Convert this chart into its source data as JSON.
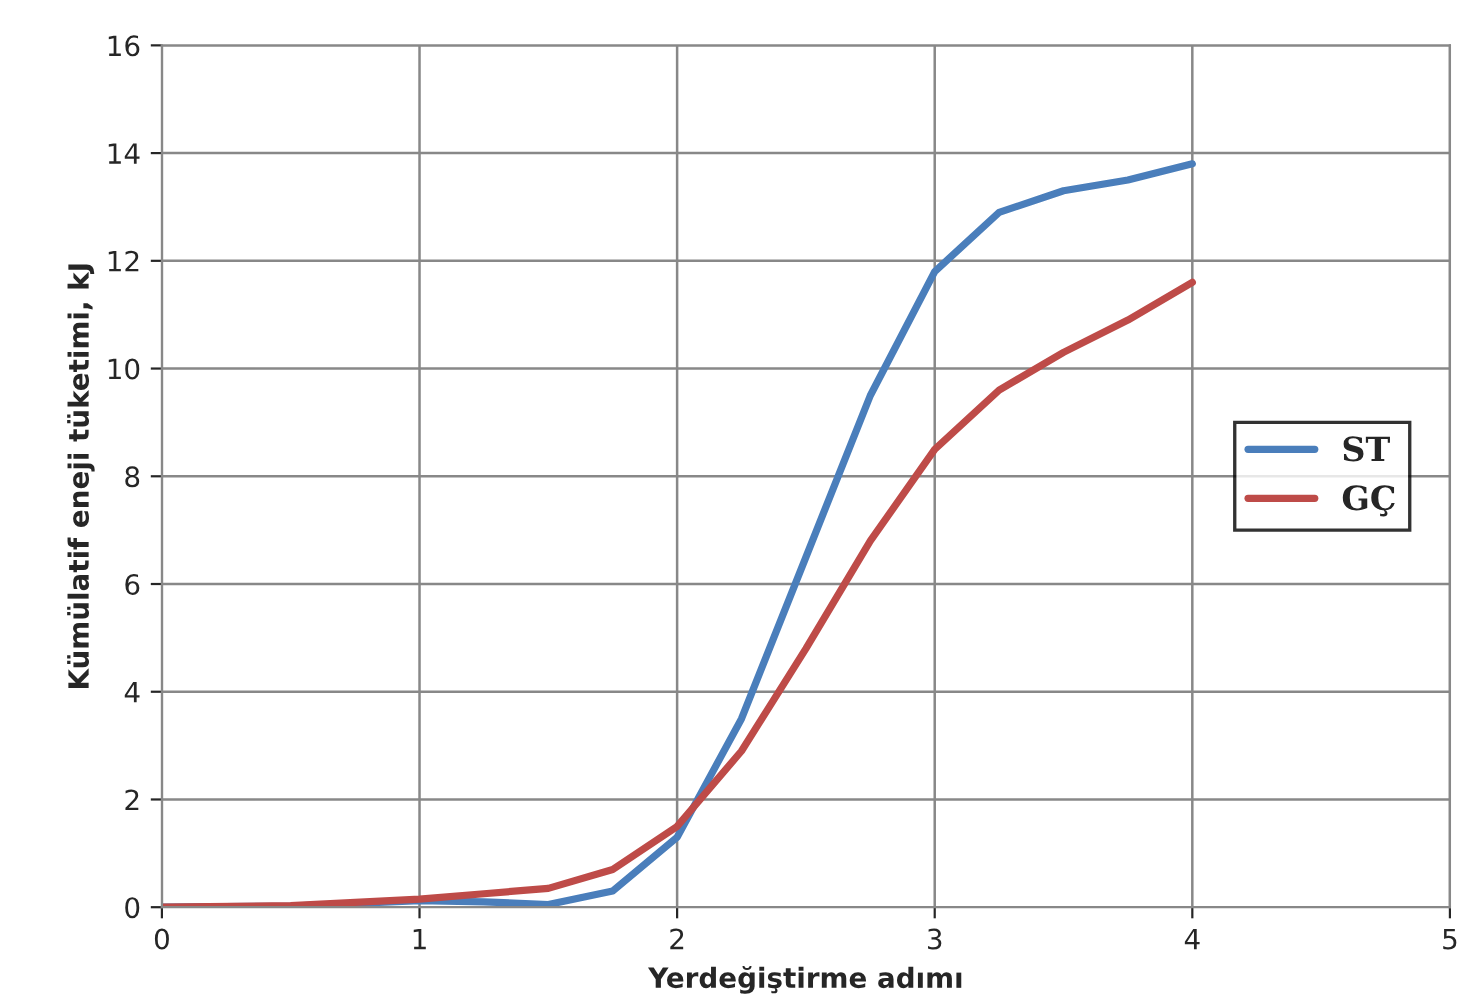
{
  "chart_data": {
    "type": "line",
    "xlabel": "Yerdeğiştirme adımı",
    "ylabel": "Kümülatif eneji tüketimi, kJ",
    "xlim": [
      0,
      5
    ],
    "xticks": [
      0,
      1,
      2,
      3,
      4,
      5
    ],
    "ylim": [
      0,
      16
    ],
    "yticks": [
      0,
      2,
      4,
      6,
      8,
      10,
      12,
      14,
      16
    ],
    "grid": true,
    "legend": "right",
    "marker": "none",
    "line_style": "solid",
    "series": [
      {
        "name": "ST",
        "color": "#4a7ebb",
        "x": [
          0,
          0.5,
          1,
          1.25,
          1.5,
          1.75,
          2,
          2.25,
          2.5,
          2.75,
          3,
          3.25,
          3.5,
          3.75,
          4
        ],
        "values": [
          0,
          0.02,
          0.12,
          0.1,
          0.05,
          0.3,
          1.3,
          3.5,
          6.5,
          9.5,
          11.8,
          12.9,
          13.3,
          13.5,
          13.8
        ]
      },
      {
        "name": "GÇ",
        "color": "#be4b48",
        "x": [
          0,
          0.5,
          1,
          1.25,
          1.5,
          1.75,
          2,
          2.25,
          2.5,
          2.75,
          3,
          3.25,
          3.5,
          3.75,
          4
        ],
        "values": [
          0,
          0.03,
          0.15,
          0.25,
          0.35,
          0.7,
          1.5,
          2.9,
          4.8,
          6.8,
          8.5,
          9.6,
          10.3,
          10.9,
          11.6
        ]
      }
    ]
  }
}
